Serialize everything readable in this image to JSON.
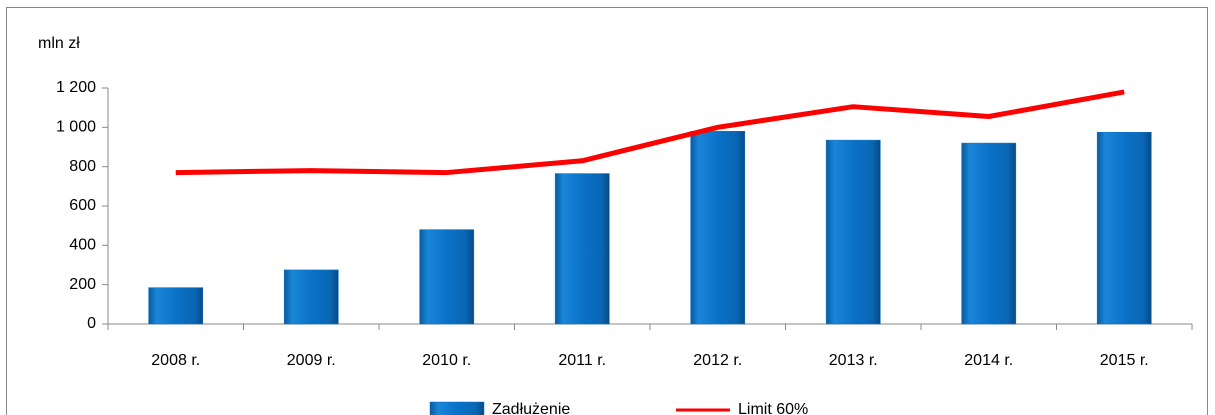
{
  "chart_data": {
    "type": "bar-line",
    "y_axis_label": "mln zł",
    "categories": [
      "2008 r.",
      "2009 r.",
      "2010 r.",
      "2011 r.",
      "2012 r.",
      "2013 r.",
      "2014 r.",
      "2015 r."
    ],
    "series": [
      {
        "name": "Zadłużenie",
        "type": "bar",
        "color": "#0a72c8",
        "values": [
          185,
          275,
          480,
          765,
          980,
          935,
          920,
          975
        ]
      },
      {
        "name": "Limit 60%",
        "type": "line",
        "color": "#ff0000",
        "values": [
          770,
          780,
          770,
          830,
          1000,
          1105,
          1055,
          1180
        ]
      }
    ],
    "ylim": [
      0,
      1200
    ],
    "yticks": [
      0,
      200,
      400,
      600,
      800,
      {
        "value": 1000,
        "label": "1 000"
      },
      {
        "value": 1200,
        "label": "1 200"
      }
    ],
    "grid": false,
    "legend": "bottom"
  }
}
